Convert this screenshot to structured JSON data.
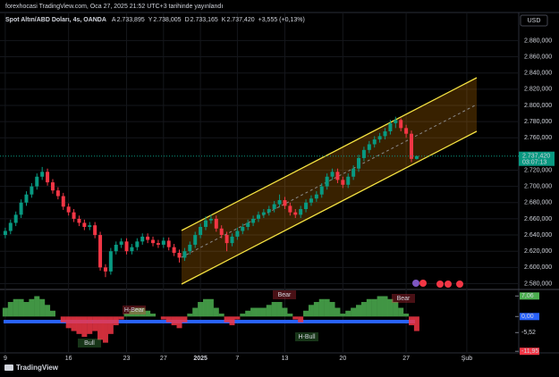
{
  "header": "forexhocasi TradingView.com, Oca 27, 2025 21:52 UTC+3 tarihinde yayınlandı",
  "footer": "TradingView",
  "chart_data": {
    "type": "candlestick",
    "currency": "USD",
    "legend": {
      "symbol": "Spot Altın/ABD Doları, 4s, OANDA",
      "fields": [
        {
          "key": "A",
          "text": "2.733,895"
        },
        {
          "key": "Y",
          "text": "2.738,005"
        },
        {
          "key": "D",
          "text": "2.733,165"
        },
        {
          "key": "K",
          "text": "2.737,420"
        }
      ],
      "change": "+3,555 (+0,13%)"
    },
    "up_color": "#089981",
    "down_color": "#f23645",
    "grid": true,
    "ohlc": [
      [
        2640,
        2649,
        2636,
        2645
      ],
      [
        2645,
        2659,
        2641,
        2655
      ],
      [
        2655,
        2669,
        2651,
        2665
      ],
      [
        2665,
        2684,
        2661,
        2680
      ],
      [
        2680,
        2694,
        2676,
        2690
      ],
      [
        2690,
        2704,
        2686,
        2700
      ],
      [
        2700,
        2716,
        2696,
        2712
      ],
      [
        2712,
        2724,
        2708,
        2718
      ],
      [
        2718,
        2722,
        2701,
        2705
      ],
      [
        2705,
        2709,
        2691,
        2695
      ],
      [
        2695,
        2699,
        2684,
        2688
      ],
      [
        2688,
        2692,
        2671,
        2675
      ],
      [
        2675,
        2679,
        2664,
        2668
      ],
      [
        2668,
        2672,
        2656,
        2660
      ],
      [
        2660,
        2664,
        2651,
        2655
      ],
      [
        2655,
        2659,
        2646,
        2650
      ],
      [
        2650,
        2656,
        2646,
        2652
      ],
      [
        2652,
        2656,
        2636,
        2640
      ],
      [
        2640,
        2644,
        2596,
        2600
      ],
      [
        2600,
        2604,
        2588,
        2595
      ],
      [
        2595,
        2624,
        2591,
        2620
      ],
      [
        2620,
        2632,
        2616,
        2628
      ],
      [
        2628,
        2636,
        2624,
        2632
      ],
      [
        2632,
        2636,
        2616,
        2620
      ],
      [
        2620,
        2629,
        2616,
        2625
      ],
      [
        2625,
        2636,
        2621,
        2632
      ],
      [
        2632,
        2642,
        2628,
        2638
      ],
      [
        2638,
        2642,
        2630,
        2634
      ],
      [
        2634,
        2638,
        2626,
        2630
      ],
      [
        2630,
        2634,
        2624,
        2628
      ],
      [
        2628,
        2637,
        2624,
        2633
      ],
      [
        2633,
        2637,
        2621,
        2625
      ],
      [
        2625,
        2629,
        2614,
        2618
      ],
      [
        2618,
        2622,
        2606,
        2612
      ],
      [
        2612,
        2624,
        2608,
        2620
      ],
      [
        2620,
        2632,
        2616,
        2628
      ],
      [
        2628,
        2644,
        2624,
        2640
      ],
      [
        2640,
        2654,
        2636,
        2650
      ],
      [
        2650,
        2663,
        2646,
        2658
      ],
      [
        2658,
        2665,
        2654,
        2660
      ],
      [
        2660,
        2664,
        2644,
        2648
      ],
      [
        2648,
        2652,
        2636,
        2640
      ],
      [
        2640,
        2644,
        2620,
        2630
      ],
      [
        2630,
        2642,
        2626,
        2638
      ],
      [
        2638,
        2649,
        2634,
        2645
      ],
      [
        2645,
        2654,
        2641,
        2650
      ],
      [
        2650,
        2659,
        2646,
        2655
      ],
      [
        2655,
        2664,
        2651,
        2660
      ],
      [
        2660,
        2669,
        2656,
        2665
      ],
      [
        2665,
        2672,
        2661,
        2668
      ],
      [
        2668,
        2676,
        2664,
        2672
      ],
      [
        2672,
        2682,
        2668,
        2678
      ],
      [
        2678,
        2690,
        2674,
        2683
      ],
      [
        2683,
        2687,
        2672,
        2676
      ],
      [
        2676,
        2680,
        2664,
        2668
      ],
      [
        2668,
        2672,
        2661,
        2665
      ],
      [
        2665,
        2676,
        2661,
        2672
      ],
      [
        2672,
        2684,
        2668,
        2680
      ],
      [
        2680,
        2689,
        2676,
        2685
      ],
      [
        2685,
        2694,
        2681,
        2690
      ],
      [
        2690,
        2704,
        2686,
        2700
      ],
      [
        2700,
        2716,
        2696,
        2712
      ],
      [
        2712,
        2722,
        2708,
        2718
      ],
      [
        2718,
        2722,
        2704,
        2708
      ],
      [
        2708,
        2712,
        2698,
        2702
      ],
      [
        2702,
        2716,
        2698,
        2712
      ],
      [
        2712,
        2726,
        2708,
        2722
      ],
      [
        2722,
        2739,
        2718,
        2735
      ],
      [
        2735,
        2749,
        2731,
        2745
      ],
      [
        2745,
        2756,
        2741,
        2752
      ],
      [
        2752,
        2762,
        2748,
        2758
      ],
      [
        2758,
        2766,
        2754,
        2762
      ],
      [
        2762,
        2772,
        2758,
        2768
      ],
      [
        2768,
        2782,
        2764,
        2778
      ],
      [
        2778,
        2786,
        2772,
        2782
      ],
      [
        2782,
        2784,
        2768,
        2772
      ],
      [
        2772,
        2776,
        2760,
        2765
      ],
      [
        2765,
        2769,
        2730,
        2734
      ],
      [
        2733.895,
        2738.005,
        2733.165,
        2737.42
      ]
    ],
    "xlim": [
      -1,
      96.5
    ],
    "xticks": [
      {
        "value": 0,
        "label": "9"
      },
      {
        "value": 12,
        "label": "16"
      },
      {
        "value": 23,
        "label": "23"
      },
      {
        "value": 30,
        "label": "27"
      },
      {
        "value": 37,
        "label": "2025"
      },
      {
        "value": 44,
        "label": "7"
      },
      {
        "value": 53,
        "label": "13"
      },
      {
        "value": 64,
        "label": "20"
      },
      {
        "value": 76,
        "label": "27"
      },
      {
        "value": 87.5,
        "label": "Şub"
      }
    ],
    "ylim": [
      2575,
      2897
    ],
    "yticks": [
      {
        "value": 2580,
        "label": "2.580,000"
      },
      {
        "value": 2600,
        "label": "2.600,000"
      },
      {
        "value": 2620,
        "label": "2.620,000"
      },
      {
        "value": 2640,
        "label": "2.640,000"
      },
      {
        "value": 2660,
        "label": "2.660,000"
      },
      {
        "value": 2680,
        "label": "2.680,000"
      },
      {
        "value": 2700,
        "label": "2.700,000"
      },
      {
        "value": 2720,
        "label": "2.720,000"
      },
      {
        "value": 2760,
        "label": "2.760,000"
      },
      {
        "value": 2780,
        "label": "2.780,000"
      },
      {
        "value": 2800,
        "label": "2.800,000"
      },
      {
        "value": 2820,
        "label": "2.820,000"
      },
      {
        "value": 2840,
        "label": "2.840,000"
      },
      {
        "value": 2860,
        "label": "2.860,000"
      },
      {
        "value": 2880,
        "label": "2.880,000"
      }
    ],
    "last_price": {
      "value": 2737.42,
      "label": "2.737,420"
    },
    "countdown": "03:07:13",
    "oscillator": {
      "values": [
        3,
        5,
        6,
        6,
        5,
        6,
        7,
        6,
        4,
        2,
        0,
        -2,
        -4,
        -5,
        -6,
        -7,
        -6,
        -5,
        -8,
        -9,
        -6,
        -3,
        -1,
        1,
        2,
        3,
        3,
        2,
        1,
        0,
        -1,
        -2,
        -3,
        -4,
        -2,
        1,
        3,
        5,
        6,
        6,
        3,
        1,
        -2,
        -3,
        -1,
        1,
        2,
        3,
        3,
        3,
        4,
        5,
        5,
        3,
        1,
        -1,
        -2,
        2,
        4,
        5,
        6,
        6,
        5,
        3,
        1,
        2,
        3,
        4,
        5,
        6,
        6,
        7,
        7,
        6,
        5,
        3,
        1,
        -3,
        -5
      ],
      "pos_color": "#4caf50",
      "neg_color": "#f23645",
      "ylim": [
        -12.5,
        9
      ],
      "yticks": [
        {
          "value": 7.06,
          "label": "7,06"
        },
        {
          "value": 0,
          "label": "0,00"
        },
        {
          "value": -5.52,
          "label": "-5,52"
        },
        {
          "value": -11.95,
          "label": "-11,95"
        }
      ],
      "annotations": [
        "H-Bear",
        "Bear",
        "Bear",
        "Bull",
        "H-Bull"
      ]
    }
  }
}
